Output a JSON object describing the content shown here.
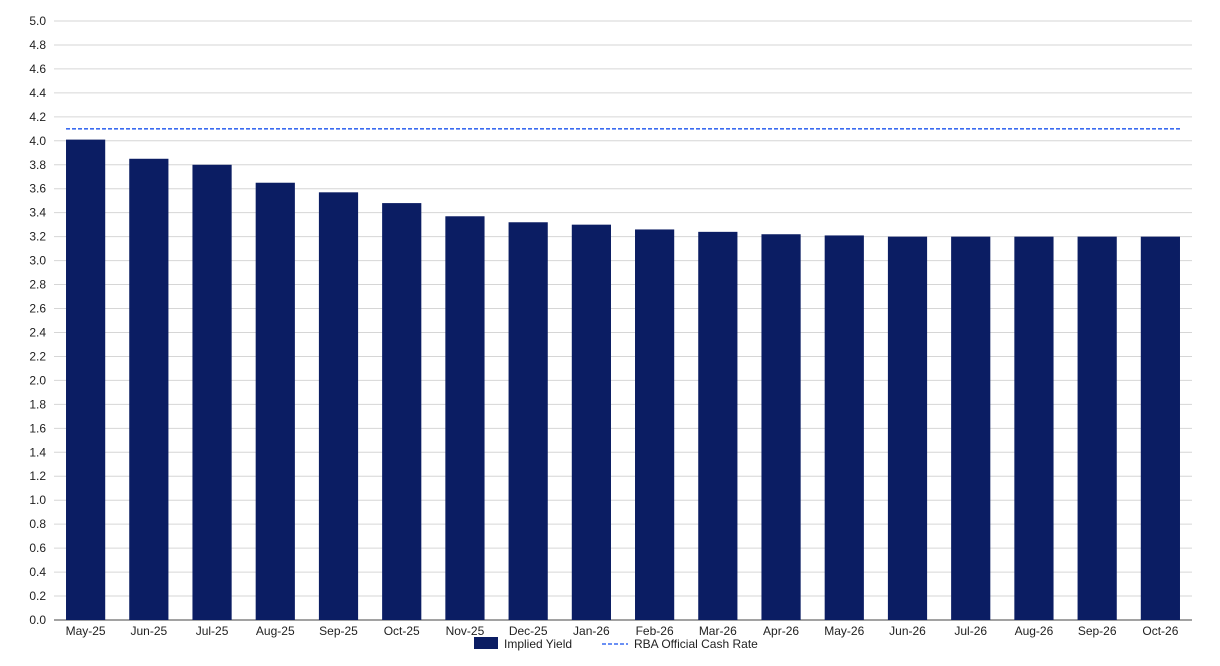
{
  "chart_data": {
    "type": "bar",
    "title": "",
    "xlabel": "",
    "ylabel": "",
    "ylim": [
      0,
      5
    ],
    "y_ticks": [
      "0.0",
      "0.2",
      "0.4",
      "0.6",
      "0.8",
      "1.0",
      "1.2",
      "1.4",
      "1.6",
      "1.8",
      "2.0",
      "2.2",
      "2.4",
      "2.6",
      "2.8",
      "3.0",
      "3.2",
      "3.4",
      "3.6",
      "3.8",
      "4.0",
      "4.2",
      "4.4",
      "4.6",
      "4.8",
      "5.0"
    ],
    "grid": true,
    "legend_position": "bottom-center",
    "categories": [
      "May-25",
      "Jun-25",
      "Jul-25",
      "Aug-25",
      "Sep-25",
      "Oct-25",
      "Nov-25",
      "Dec-25",
      "Jan-26",
      "Feb-26",
      "Mar-26",
      "Apr-26",
      "May-26",
      "Jun-26",
      "Jul-26",
      "Aug-26",
      "Sep-26",
      "Oct-26"
    ],
    "series": [
      {
        "name": "Implied Yield",
        "kind": "bar",
        "color": "#0b1d63",
        "values": [
          4.01,
          3.85,
          3.8,
          3.65,
          3.57,
          3.48,
          3.37,
          3.32,
          3.3,
          3.26,
          3.24,
          3.22,
          3.21,
          3.2,
          3.2,
          3.2,
          3.2,
          3.2
        ]
      },
      {
        "name": "RBA Official Cash Rate",
        "kind": "dashed-line",
        "color": "#3a6bf0",
        "values": [
          4.1,
          4.1,
          4.1,
          4.1,
          4.1,
          4.1,
          4.1,
          4.1,
          4.1,
          4.1,
          4.1,
          4.1,
          4.1,
          4.1,
          4.1,
          4.1,
          4.1,
          4.1
        ]
      }
    ]
  }
}
